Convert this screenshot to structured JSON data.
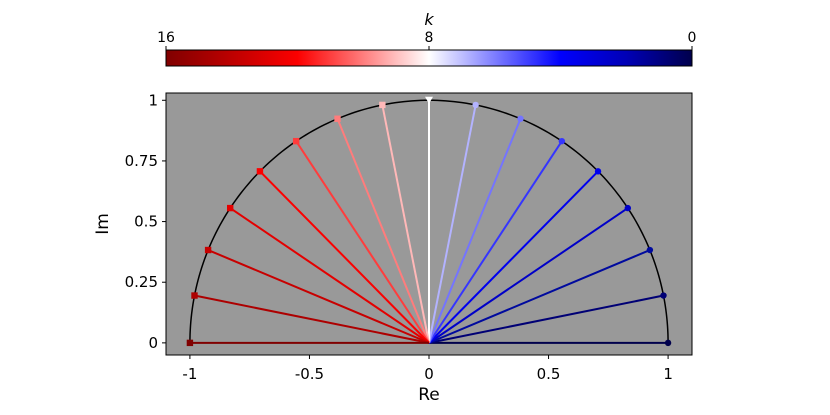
{
  "chart_data": {
    "type": "line",
    "title": "",
    "xlabel": "Re",
    "ylabel": "Im",
    "xlim": [
      -1.1,
      1.1
    ],
    "ylim": [
      -0.05,
      1.03
    ],
    "x_ticks": [
      -1,
      -0.5,
      0,
      0.5,
      1
    ],
    "x_tick_labels": [
      "-1",
      "-0.5",
      "0",
      "0.5",
      "1"
    ],
    "y_ticks": [
      0,
      0.25,
      0.5,
      0.75,
      1
    ],
    "y_tick_labels": [
      "0",
      "0.25",
      "0.5",
      "0.75",
      "1"
    ],
    "background_color": "#999999",
    "unit_semicircle": true,
    "colorbar": {
      "label": "k",
      "min": 0,
      "max": 16,
      "ticks": [
        16,
        8,
        0
      ],
      "tick_labels": [
        "16",
        "8",
        "0"
      ],
      "colormap": "seismic",
      "direction": "reversed (16 at left, 0 at right)"
    },
    "markers": {
      "k_0_to_7": "circle",
      "k_8": "triangle-down",
      "k_9_to_16": "square"
    },
    "series": [
      {
        "k": 0,
        "x": 1.0,
        "y": 0.0,
        "color": "#00004c"
      },
      {
        "k": 1,
        "x": 0.9808,
        "y": 0.1951,
        "color": "#000075"
      },
      {
        "k": 2,
        "x": 0.9239,
        "y": 0.3827,
        "color": "#000a9e"
      },
      {
        "k": 3,
        "x": 0.8315,
        "y": 0.5556,
        "color": "#0000c8"
      },
      {
        "k": 4,
        "x": 0.7071,
        "y": 0.7071,
        "color": "#0000ef"
      },
      {
        "k": 5,
        "x": 0.5556,
        "y": 0.8315,
        "color": "#3535ff"
      },
      {
        "k": 6,
        "x": 0.3827,
        "y": 0.9239,
        "color": "#7474ff"
      },
      {
        "k": 7,
        "x": 0.1951,
        "y": 0.9808,
        "color": "#b3b3ff"
      },
      {
        "k": 8,
        "x": 0.0,
        "y": 1.0,
        "color": "#ffffff"
      },
      {
        "k": 9,
        "x": -0.1951,
        "y": 0.9808,
        "color": "#ffb8b8"
      },
      {
        "k": 10,
        "x": -0.3827,
        "y": 0.9239,
        "color": "#ff7c7c"
      },
      {
        "k": 11,
        "x": -0.5556,
        "y": 0.8315,
        "color": "#ff3c3c"
      },
      {
        "k": 12,
        "x": -0.7071,
        "y": 0.7071,
        "color": "#fc0000"
      },
      {
        "k": 13,
        "x": -0.8315,
        "y": 0.5556,
        "color": "#e40000"
      },
      {
        "k": 14,
        "x": -0.9239,
        "y": 0.3827,
        "color": "#c80000"
      },
      {
        "k": 15,
        "x": -0.9808,
        "y": 0.1951,
        "color": "#ad0000"
      },
      {
        "k": 16,
        "x": -1.0,
        "y": 0.0,
        "color": "#800000"
      }
    ]
  }
}
